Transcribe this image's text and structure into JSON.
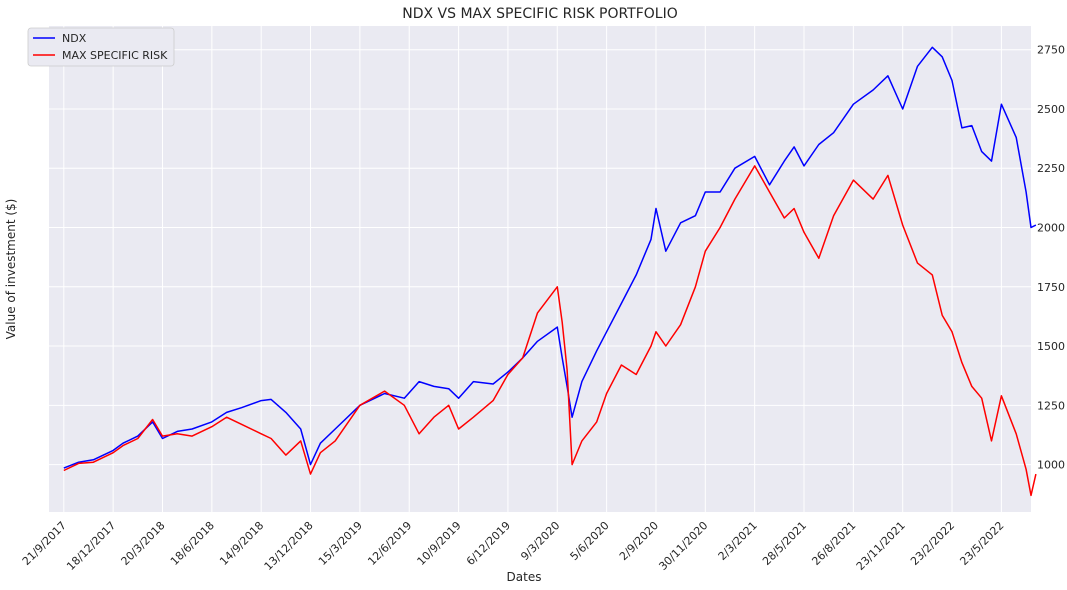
{
  "chart_data": {
    "type": "line",
    "title": "NDX VS MAX SPECIFIC RISK PORTFOLIO",
    "xlabel": "Dates",
    "ylabel": "Value of investment ($)",
    "ylim": [
      800,
      2850
    ],
    "yticks": [
      1000,
      1250,
      1500,
      1750,
      2000,
      2250,
      2500,
      2750
    ],
    "y_axis_side": "right",
    "grid": true,
    "legend_position": "top-left",
    "x_tick_labels": [
      "21/9/2017",
      "18/12/2017",
      "20/3/2018",
      "18/6/2018",
      "14/9/2018",
      "13/12/2018",
      "15/3/2019",
      "12/6/2019",
      "10/9/2019",
      "6/12/2019",
      "9/3/2020",
      "5/6/2020",
      "2/9/2020",
      "30/11/2020",
      "2/3/2021",
      "28/5/2021",
      "26/8/2021",
      "23/11/2021",
      "23/2/2022",
      "23/5/2022"
    ],
    "x_range": [
      -0.3,
      19.6
    ],
    "series": [
      {
        "name": "NDX",
        "color": "#0000ff",
        "points": [
          [
            0,
            985
          ],
          [
            0.3,
            1010
          ],
          [
            0.6,
            1020
          ],
          [
            1.0,
            1060
          ],
          [
            1.2,
            1090
          ],
          [
            1.5,
            1120
          ],
          [
            1.8,
            1180
          ],
          [
            2.0,
            1110
          ],
          [
            2.3,
            1140
          ],
          [
            2.6,
            1150
          ],
          [
            3.0,
            1180
          ],
          [
            3.3,
            1220
          ],
          [
            3.6,
            1240
          ],
          [
            4.0,
            1270
          ],
          [
            4.2,
            1275
          ],
          [
            4.5,
            1220
          ],
          [
            4.8,
            1150
          ],
          [
            5.0,
            1000
          ],
          [
            5.2,
            1090
          ],
          [
            5.5,
            1150
          ],
          [
            6.0,
            1250
          ],
          [
            6.5,
            1300
          ],
          [
            6.9,
            1280
          ],
          [
            7.2,
            1350
          ],
          [
            7.5,
            1330
          ],
          [
            7.8,
            1320
          ],
          [
            8.0,
            1280
          ],
          [
            8.3,
            1350
          ],
          [
            8.7,
            1340
          ],
          [
            9.0,
            1390
          ],
          [
            9.3,
            1450
          ],
          [
            9.6,
            1520
          ],
          [
            10.0,
            1580
          ],
          [
            10.1,
            1450
          ],
          [
            10.2,
            1330
          ],
          [
            10.3,
            1200
          ],
          [
            10.5,
            1350
          ],
          [
            10.8,
            1480
          ],
          [
            11.0,
            1560
          ],
          [
            11.3,
            1680
          ],
          [
            11.6,
            1800
          ],
          [
            11.9,
            1950
          ],
          [
            12.0,
            2080
          ],
          [
            12.2,
            1900
          ],
          [
            12.5,
            2020
          ],
          [
            12.8,
            2050
          ],
          [
            13.0,
            2150
          ],
          [
            13.3,
            2150
          ],
          [
            13.6,
            2250
          ],
          [
            14.0,
            2300
          ],
          [
            14.3,
            2180
          ],
          [
            14.6,
            2280
          ],
          [
            14.8,
            2340
          ],
          [
            15.0,
            2260
          ],
          [
            15.3,
            2350
          ],
          [
            15.6,
            2400
          ],
          [
            16.0,
            2520
          ],
          [
            16.4,
            2580
          ],
          [
            16.7,
            2640
          ],
          [
            17.0,
            2500
          ],
          [
            17.3,
            2680
          ],
          [
            17.6,
            2760
          ],
          [
            17.8,
            2720
          ],
          [
            18.0,
            2620
          ],
          [
            18.2,
            2420
          ],
          [
            18.4,
            2430
          ],
          [
            18.6,
            2320
          ],
          [
            18.8,
            2280
          ],
          [
            19.0,
            2520
          ],
          [
            19.3,
            2380
          ],
          [
            19.5,
            2150
          ],
          [
            19.6,
            2000
          ],
          [
            19.7,
            2010
          ]
        ]
      },
      {
        "name": "MAX SPECIFIC RISK",
        "color": "#ff0000",
        "points": [
          [
            0,
            975
          ],
          [
            0.3,
            1005
          ],
          [
            0.6,
            1010
          ],
          [
            1.0,
            1050
          ],
          [
            1.2,
            1080
          ],
          [
            1.5,
            1110
          ],
          [
            1.8,
            1190
          ],
          [
            2.0,
            1120
          ],
          [
            2.3,
            1130
          ],
          [
            2.6,
            1120
          ],
          [
            3.0,
            1160
          ],
          [
            3.3,
            1200
          ],
          [
            3.6,
            1170
          ],
          [
            4.0,
            1130
          ],
          [
            4.2,
            1110
          ],
          [
            4.5,
            1040
          ],
          [
            4.8,
            1100
          ],
          [
            5.0,
            960
          ],
          [
            5.2,
            1050
          ],
          [
            5.5,
            1100
          ],
          [
            6.0,
            1250
          ],
          [
            6.5,
            1310
          ],
          [
            6.9,
            1250
          ],
          [
            7.2,
            1130
          ],
          [
            7.5,
            1200
          ],
          [
            7.8,
            1250
          ],
          [
            8.0,
            1150
          ],
          [
            8.3,
            1200
          ],
          [
            8.7,
            1270
          ],
          [
            9.0,
            1380
          ],
          [
            9.3,
            1450
          ],
          [
            9.6,
            1640
          ],
          [
            10.0,
            1750
          ],
          [
            10.1,
            1600
          ],
          [
            10.2,
            1400
          ],
          [
            10.3,
            1000
          ],
          [
            10.5,
            1100
          ],
          [
            10.8,
            1180
          ],
          [
            11.0,
            1300
          ],
          [
            11.3,
            1420
          ],
          [
            11.6,
            1380
          ],
          [
            11.9,
            1500
          ],
          [
            12.0,
            1560
          ],
          [
            12.2,
            1500
          ],
          [
            12.5,
            1590
          ],
          [
            12.8,
            1750
          ],
          [
            13.0,
            1900
          ],
          [
            13.3,
            2000
          ],
          [
            13.6,
            2120
          ],
          [
            14.0,
            2260
          ],
          [
            14.3,
            2150
          ],
          [
            14.6,
            2040
          ],
          [
            14.8,
            2080
          ],
          [
            15.0,
            1980
          ],
          [
            15.3,
            1870
          ],
          [
            15.6,
            2050
          ],
          [
            16.0,
            2200
          ],
          [
            16.4,
            2120
          ],
          [
            16.7,
            2220
          ],
          [
            17.0,
            2010
          ],
          [
            17.3,
            1850
          ],
          [
            17.6,
            1800
          ],
          [
            17.8,
            1630
          ],
          [
            18.0,
            1560
          ],
          [
            18.2,
            1430
          ],
          [
            18.4,
            1330
          ],
          [
            18.6,
            1280
          ],
          [
            18.8,
            1100
          ],
          [
            19.0,
            1290
          ],
          [
            19.3,
            1130
          ],
          [
            19.5,
            980
          ],
          [
            19.6,
            870
          ],
          [
            19.7,
            960
          ]
        ]
      }
    ]
  }
}
